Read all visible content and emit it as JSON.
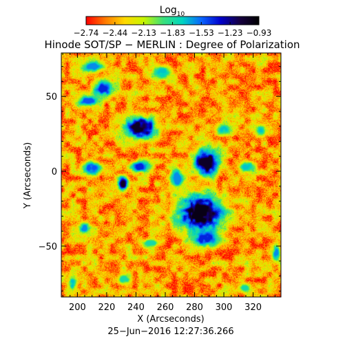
{
  "chart_data": {
    "type": "heatmap",
    "title": "Hinode SOT/SP − MERLIN : Degree of Polarization",
    "colorbar": {
      "label_base": "Log",
      "label_sub": "10",
      "ticks": [
        "−2.74",
        "−2.44",
        "−2.13",
        "−1.83",
        "−1.53",
        "−1.23",
        "−0.93"
      ],
      "range": [
        -2.74,
        -0.93
      ],
      "colors": [
        "#ff0000",
        "#ff7a00",
        "#ffd800",
        "#c8f500",
        "#3ce07a",
        "#00d6c0",
        "#0a66ff",
        "#0000cc",
        "#160040",
        "#000000"
      ]
    },
    "xlabel": "X (Arcseconds)",
    "ylabel": "Y (Arcseconds)",
    "xlim": [
      189,
      339
    ],
    "ylim": [
      -84,
      79
    ],
    "xticks": [
      200,
      220,
      240,
      260,
      280,
      300,
      320
    ],
    "xtick_labels": [
      "200",
      "220",
      "240",
      "260",
      "280",
      "300",
      "320"
    ],
    "yticks": [
      50,
      0,
      -50
    ],
    "ytick_labels": [
      "50",
      "0",
      "−50"
    ],
    "timestamp": "25−Jun−2016 12:27:36.266",
    "background_value": -2.45,
    "features": [
      {
        "x": 284,
        "y": -28,
        "rx": 17,
        "ry": 13,
        "peak": -1.0
      },
      {
        "x": 288,
        "y": 6,
        "rx": 9,
        "ry": 10,
        "peak": -1.05
      },
      {
        "x": 288,
        "y": -45,
        "rx": 10,
        "ry": 6,
        "peak": -1.4
      },
      {
        "x": 243,
        "y": 29,
        "rx": 12,
        "ry": 8,
        "peak": -1.05
      },
      {
        "x": 231,
        "y": -8,
        "rx": 4,
        "ry": 5,
        "peak": -1.05
      },
      {
        "x": 218,
        "y": 55,
        "rx": 8,
        "ry": 6,
        "peak": -1.4
      },
      {
        "x": 207,
        "y": 47,
        "rx": 8,
        "ry": 4,
        "peak": -1.5
      },
      {
        "x": 210,
        "y": 70,
        "rx": 9,
        "ry": 4,
        "peak": -1.6
      },
      {
        "x": 258,
        "y": 66,
        "rx": 7,
        "ry": 5,
        "peak": -1.7
      },
      {
        "x": 210,
        "y": 2,
        "rx": 7,
        "ry": 5,
        "peak": -1.5
      },
      {
        "x": 243,
        "y": 3,
        "rx": 7,
        "ry": 4,
        "peak": -1.4
      },
      {
        "x": 268,
        "y": -5,
        "rx": 5,
        "ry": 8,
        "peak": -1.6
      },
      {
        "x": 316,
        "y": 3,
        "rx": 6,
        "ry": 4,
        "peak": -1.7
      },
      {
        "x": 300,
        "y": 28,
        "rx": 5,
        "ry": 4,
        "peak": -1.7
      },
      {
        "x": 325,
        "y": 27,
        "rx": 4,
        "ry": 4,
        "peak": -1.7
      },
      {
        "x": 205,
        "y": -38,
        "rx": 5,
        "ry": 4,
        "peak": -1.6
      },
      {
        "x": 250,
        "y": -48,
        "rx": 6,
        "ry": 3,
        "peak": -1.8
      },
      {
        "x": 336,
        "y": -55,
        "rx": 3,
        "ry": 6,
        "peak": -1.6
      },
      {
        "x": 197,
        "y": -75,
        "rx": 3,
        "ry": 5,
        "peak": -1.7
      },
      {
        "x": 232,
        "y": -72,
        "rx": 5,
        "ry": 4,
        "peak": -1.8
      },
      {
        "x": 314,
        "y": -78,
        "rx": 4,
        "ry": 3,
        "peak": -1.8
      }
    ]
  }
}
